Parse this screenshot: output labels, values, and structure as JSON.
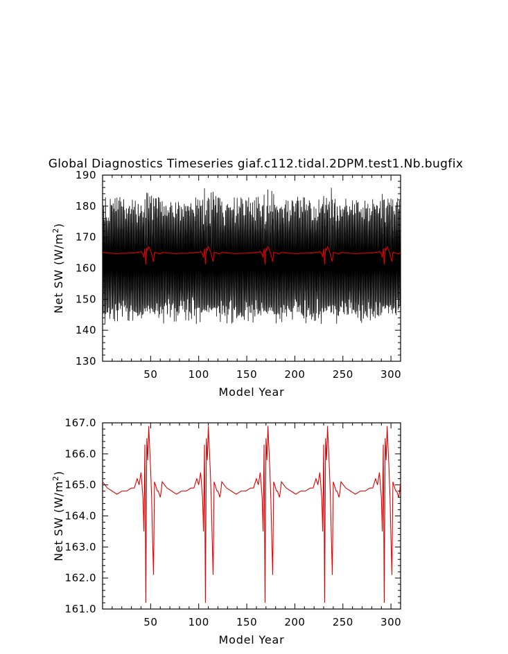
{
  "title": "Global Diagnostics Timeseries giaf.c112.tidal.2DPM.test1.Nb.bugfix",
  "colors": {
    "annual": "#000000",
    "annual_mean": "#e00000",
    "background": "#ffffff"
  },
  "chart_data": [
    {
      "type": "line",
      "title": "Global Diagnostics Timeseries giaf.c112.tidal.2DPM.test1.Nb.bugfix",
      "xlabel": "Model Year",
      "ylabel_text": "Net SW (W/m",
      "ylabel_sup": "2",
      "ylabel_close": ")",
      "xlim": [
        0,
        310
      ],
      "ylim": [
        130,
        190
      ],
      "xticks": [
        50,
        100,
        150,
        200,
        250,
        300
      ],
      "xtick_labels": [
        "50",
        "100",
        "150",
        "200",
        "250",
        "300"
      ],
      "yticks": [
        130,
        140,
        150,
        160,
        170,
        180,
        190
      ],
      "ytick_labels": [
        "130",
        "140",
        "150",
        "160",
        "170",
        "180",
        "190"
      ],
      "grid": false,
      "series": [
        {
          "color": "#000000",
          "description_of_values": "monthly values oscillating seasonally between about 142 and 183, extremes near 138 and 186",
          "monthly_range": [
            142,
            183
          ],
          "monthly_extremes": [
            138.5,
            186
          ]
        },
        {
          "color": "#e00000",
          "cycle_years": 62,
          "cycle_x": [
            0,
            5,
            10,
            15,
            20,
            25,
            30,
            33,
            36,
            38,
            40,
            42,
            43,
            44,
            45,
            46,
            47,
            48,
            49,
            50,
            51,
            52,
            53,
            54,
            55,
            56,
            57,
            58,
            59,
            60,
            61,
            62
          ],
          "cycle_y": [
            165.1,
            164.9,
            164.8,
            164.7,
            164.8,
            164.8,
            164.9,
            164.9,
            165.2,
            165.0,
            165.4,
            164.6,
            163.5,
            166.3,
            161.2,
            166.5,
            165.8,
            166.9,
            166.2,
            165.5,
            164.6,
            163.3,
            162.1,
            165.1,
            165.0,
            164.9,
            164.8,
            164.8,
            164.7,
            164.6,
            164.8,
            165.1
          ]
        }
      ]
    },
    {
      "type": "line",
      "xlabel": "Model Year",
      "ylabel_text": "Net SW (W/m",
      "ylabel_sup": "2",
      "ylabel_close": ")",
      "xlim": [
        0,
        310
      ],
      "ylim": [
        161.0,
        167.0
      ],
      "xticks": [
        50,
        100,
        150,
        200,
        250,
        300
      ],
      "xtick_labels": [
        "50",
        "100",
        "150",
        "200",
        "250",
        "300"
      ],
      "yticks": [
        161,
        162,
        163,
        164,
        165,
        166,
        167
      ],
      "ytick_labels": [
        "161.0",
        "162.0",
        "163.0",
        "164.0",
        "165.0",
        "166.0",
        "167.0"
      ],
      "grid": false,
      "series": [
        {
          "color": "#e00000",
          "cycle_years": 62,
          "cycle_x": [
            0,
            5,
            10,
            15,
            20,
            25,
            30,
            33,
            36,
            38,
            40,
            42,
            43,
            44,
            45,
            46,
            47,
            48,
            49,
            50,
            51,
            52,
            53,
            54,
            55,
            56,
            57,
            58,
            59,
            60,
            61,
            62
          ],
          "cycle_y": [
            165.1,
            164.9,
            164.8,
            164.7,
            164.8,
            164.8,
            164.9,
            164.9,
            165.2,
            165.0,
            165.4,
            164.6,
            163.5,
            166.3,
            161.2,
            166.5,
            165.8,
            166.9,
            166.2,
            165.5,
            164.6,
            163.3,
            162.1,
            165.1,
            165.0,
            164.9,
            164.8,
            164.8,
            164.7,
            164.6,
            164.8,
            165.1
          ]
        }
      ]
    }
  ]
}
